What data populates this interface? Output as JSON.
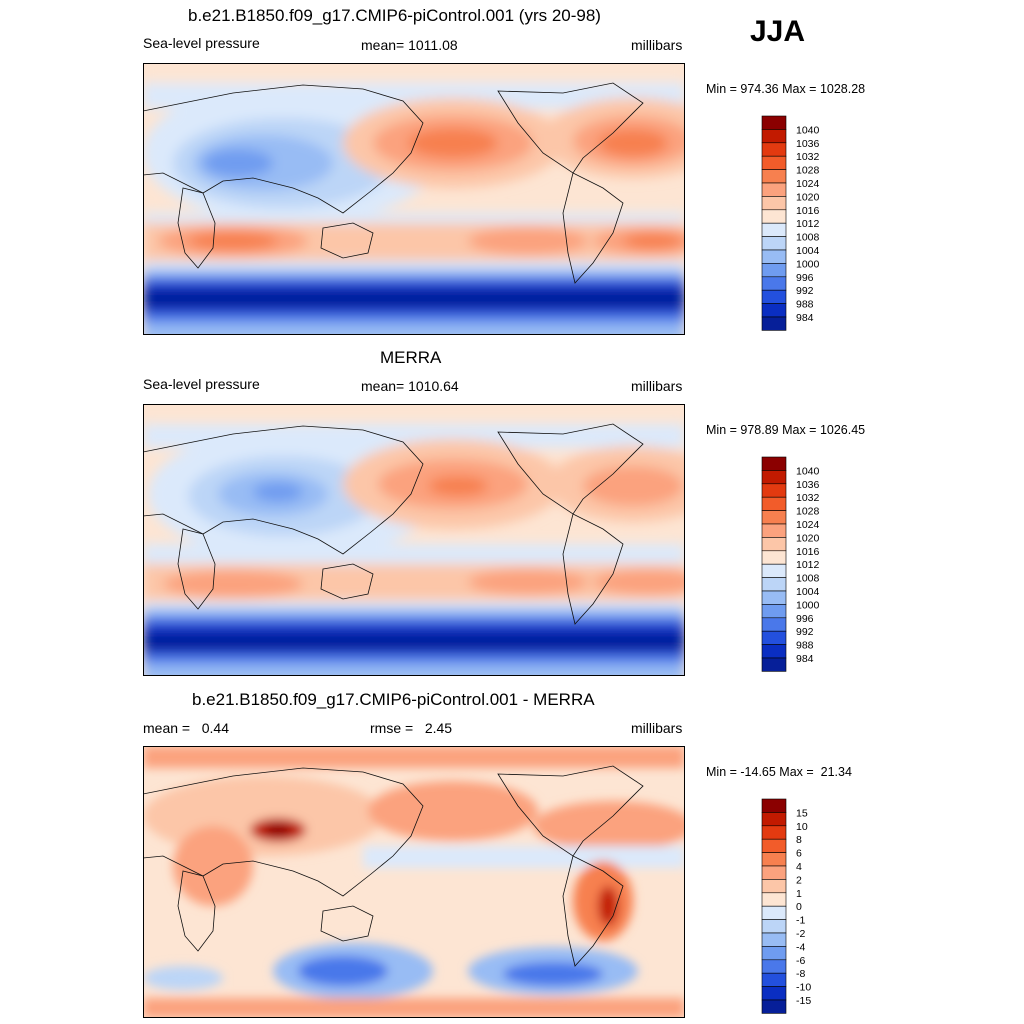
{
  "season": "JJA",
  "panels": [
    {
      "title": "b.e21.B1850.f09_g17.CMIP6-piControl.001 (yrs 20-98)",
      "left_label": "Sea-level pressure",
      "center_label": "mean= 1011.08",
      "right_label": "millibars",
      "minmax": "Min = 974.36 Max = 1028.28",
      "levels": [
        "1040",
        "1036",
        "1032",
        "1028",
        "1024",
        "1020",
        "1016",
        "1012",
        "1008",
        "1004",
        "1000",
        "996",
        "992",
        "988",
        "984"
      ],
      "colors": [
        "#8b0000",
        "#c21a00",
        "#e33a10",
        "#f25c2a",
        "#f7804f",
        "#fba27e",
        "#fcc6a8",
        "#fde5d3",
        "#dbe9fb",
        "#bcd5f7",
        "#98bcf4",
        "#6f9cf0",
        "#4a78ea",
        "#2350de",
        "#0a2ec2",
        "#061f99"
      ]
    },
    {
      "title": "MERRA",
      "left_label": "Sea-level pressure",
      "center_label": "mean= 1010.64",
      "right_label": "millibars",
      "minmax": "Min = 978.89 Max = 1026.45",
      "levels": [
        "1040",
        "1036",
        "1032",
        "1028",
        "1024",
        "1020",
        "1016",
        "1012",
        "1008",
        "1004",
        "1000",
        "996",
        "992",
        "988",
        "984"
      ],
      "colors": [
        "#8b0000",
        "#c21a00",
        "#e33a10",
        "#f25c2a",
        "#f7804f",
        "#fba27e",
        "#fcc6a8",
        "#fde5d3",
        "#dbe9fb",
        "#bcd5f7",
        "#98bcf4",
        "#6f9cf0",
        "#4a78ea",
        "#2350de",
        "#0a2ec2",
        "#061f99"
      ]
    },
    {
      "title": "b.e21.B1850.f09_g17.CMIP6-piControl.001 - MERRA",
      "left_label": "mean =   0.44",
      "center_label": "rmse =   2.45",
      "right_label": "millibars",
      "minmax": "Min = -14.65 Max =  21.34",
      "levels": [
        "15",
        "10",
        "8",
        "6",
        "4",
        "2",
        "1",
        "0",
        "-1",
        "-2",
        "-4",
        "-6",
        "-8",
        "-10",
        "-15"
      ],
      "colors": [
        "#8b0000",
        "#c21a00",
        "#e33a10",
        "#f25c2a",
        "#f7804f",
        "#fba27e",
        "#fcc6a8",
        "#fde5d3",
        "#dbe9fb",
        "#bcd5f7",
        "#98bcf4",
        "#6f9cf0",
        "#4a78ea",
        "#2350de",
        "#0a2ec2",
        "#061f99"
      ]
    }
  ]
}
